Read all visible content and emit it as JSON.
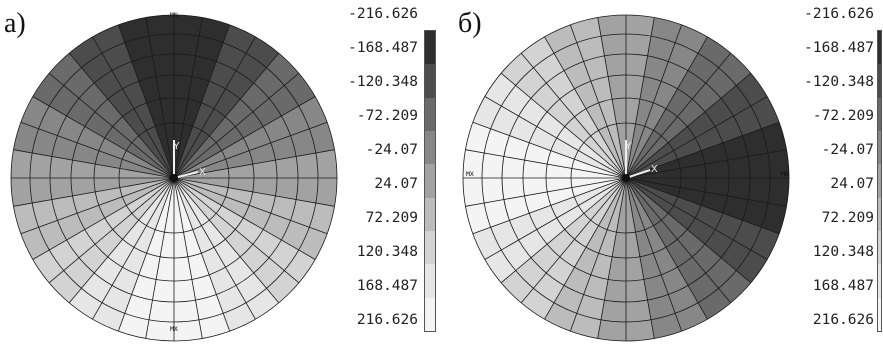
{
  "panels": [
    {
      "label": "а)",
      "max_marker": "MX",
      "min_marker": "MN",
      "axis_y": "Y",
      "axis_x": "X"
    },
    {
      "label": "б)",
      "max_marker": "MX",
      "min_marker": "MN",
      "axis_y": "Y",
      "axis_x": "X"
    }
  ],
  "legend": {
    "values": [
      "-216.626",
      "-168.487",
      "-120.348",
      "-72.209",
      "-24.07",
      "24.07",
      "72.209",
      "120.348",
      "168.487",
      "216.626"
    ],
    "colors": [
      "#2e2e2e",
      "#4c4c4c",
      "#6a6a6a",
      "#878787",
      "#a2a2a2",
      "#bcbcbc",
      "#d3d3d3",
      "#e6e6e6",
      "#f4f4f4"
    ]
  }
}
